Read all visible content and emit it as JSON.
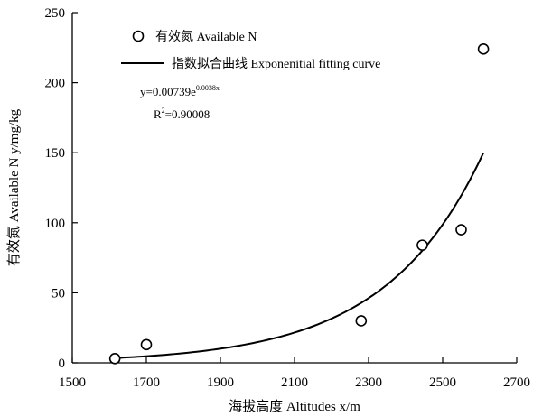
{
  "chart_data": {
    "type": "scatter",
    "xlabel": "海拔高度 Altitudes  x/m",
    "ylabel": "有效氮 Available N y/mg/kg",
    "xlim": [
      1500,
      2700
    ],
    "ylim": [
      0,
      250
    ],
    "xticks": [
      1500,
      1700,
      1900,
      2100,
      2300,
      2500,
      2700
    ],
    "yticks": [
      0,
      50,
      100,
      150,
      200,
      250
    ],
    "grid": false,
    "legend_position": "top-left",
    "series": [
      {
        "name": "有效氮 Available N",
        "kind": "scatter",
        "marker": "open-circle",
        "points": [
          {
            "x": 1615,
            "y": 3
          },
          {
            "x": 1700,
            "y": 13
          },
          {
            "x": 2280,
            "y": 30
          },
          {
            "x": 2445,
            "y": 84
          },
          {
            "x": 2550,
            "y": 95
          },
          {
            "x": 2610,
            "y": 224
          }
        ]
      },
      {
        "name": "指数拟合曲线 Exponenitial fitting curve",
        "kind": "line",
        "fit": {
          "a": 0.00739,
          "b": 0.0038,
          "x_start": 1615,
          "x_end": 2610
        }
      }
    ],
    "annotations": {
      "equation_base": "y=0.00739e",
      "equation_exponent": "0.0038x",
      "r2_prefix": "R",
      "r2_sup": "2",
      "r2_value": "=0.90008"
    }
  }
}
